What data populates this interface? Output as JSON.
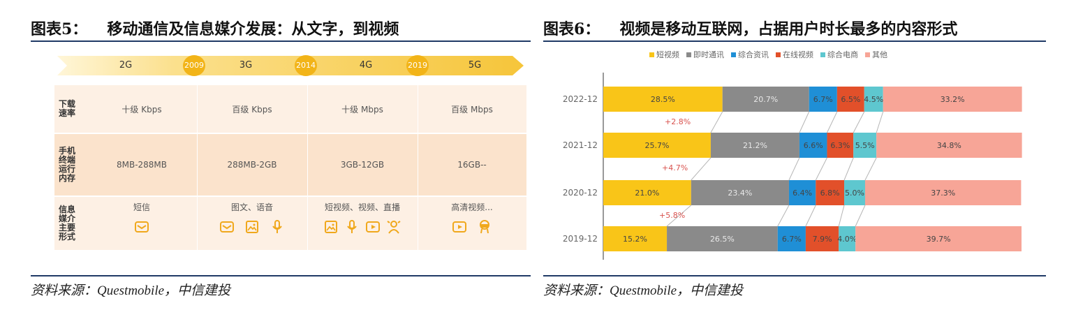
{
  "left": {
    "title_num": "图表5：",
    "title_text": "移动通信及信息媒介发展：从文字，到视频",
    "source": "资料来源：Questmobile，中信建投",
    "generations": [
      "2G",
      "3G",
      "4G",
      "5G"
    ],
    "years": [
      "2009",
      "2014",
      "2019"
    ],
    "rows": [
      {
        "head": "下载速率",
        "cells": [
          "十级 Kbps",
          "百级 Kbps",
          "十级 Mbps",
          "百级 Mbps"
        ]
      },
      {
        "head": "手机终端运行内存",
        "cells": [
          "8MB-288MB",
          "288MB-2GB",
          "3GB-12GB",
          "16GB--"
        ]
      },
      {
        "head": "信息媒介主要形式",
        "cells": [
          "短信",
          "图文、语音",
          "短视频、视频、直播",
          "高清视频..."
        ]
      }
    ],
    "media_icons": [
      [
        "message-icon"
      ],
      [
        "message-icon",
        "image-icon",
        "microphone-icon"
      ],
      [
        "image-icon",
        "microphone-icon",
        "play-icon",
        "live-stream-icon"
      ],
      [
        "play-icon",
        "vr-headset-icon"
      ]
    ],
    "colors": {
      "timeline": "#f6c53a",
      "badge": "#f2b418",
      "row_light": "#fdf0e4",
      "row_mid": "#fbe3cc",
      "icon": "#f0a81c"
    }
  },
  "right": {
    "title_num": "图表6：",
    "title_text": "视频是移动互联网，占据用户时长最多的内容形式",
    "source": "资料来源：Questmobile，中信建投"
  },
  "chart_data": {
    "type": "bar",
    "orientation": "horizontal-stacked-100",
    "categories": [
      "2022-12",
      "2021-12",
      "2020-12",
      "2019-12"
    ],
    "series": [
      {
        "name": "短视频",
        "color": "#f9c518",
        "values": [
          28.5,
          25.7,
          21.0,
          15.2
        ]
      },
      {
        "name": "即时通讯",
        "color": "#8a8a8a",
        "values": [
          20.7,
          21.2,
          23.4,
          26.5
        ]
      },
      {
        "name": "综合资讯",
        "color": "#1f8fd6",
        "values": [
          6.7,
          6.6,
          6.4,
          6.7
        ]
      },
      {
        "name": "在线视频",
        "color": "#e2502a",
        "values": [
          6.5,
          6.3,
          6.8,
          7.9
        ]
      },
      {
        "name": "综合电商",
        "color": "#5ec7cf",
        "values": [
          4.5,
          5.5,
          5.0,
          4.0
        ]
      },
      {
        "name": "其他",
        "color": "#f7a597",
        "values": [
          33.2,
          34.8,
          37.3,
          39.7
        ]
      }
    ],
    "data_labels": [
      [
        "28.5%",
        "20.7%",
        "6.7%",
        "6.5%",
        "4.5%",
        "33.2%"
      ],
      [
        "25.7%",
        "21.2%",
        "6.6%",
        "6.3%",
        "5.5%",
        "34.8%"
      ],
      [
        "21.0%",
        "23.4%",
        "6.4%",
        "6.8%",
        "5.0%",
        "37.3%"
      ],
      [
        "15.2%",
        "26.5%",
        "6.7%",
        "7.9%",
        "4.0%",
        "39.7%"
      ]
    ],
    "annotations": [
      "+2.8%",
      "+4.7%",
      "+5.8%"
    ],
    "xlim": [
      0,
      100
    ],
    "legend": "top-center",
    "grid": false
  }
}
